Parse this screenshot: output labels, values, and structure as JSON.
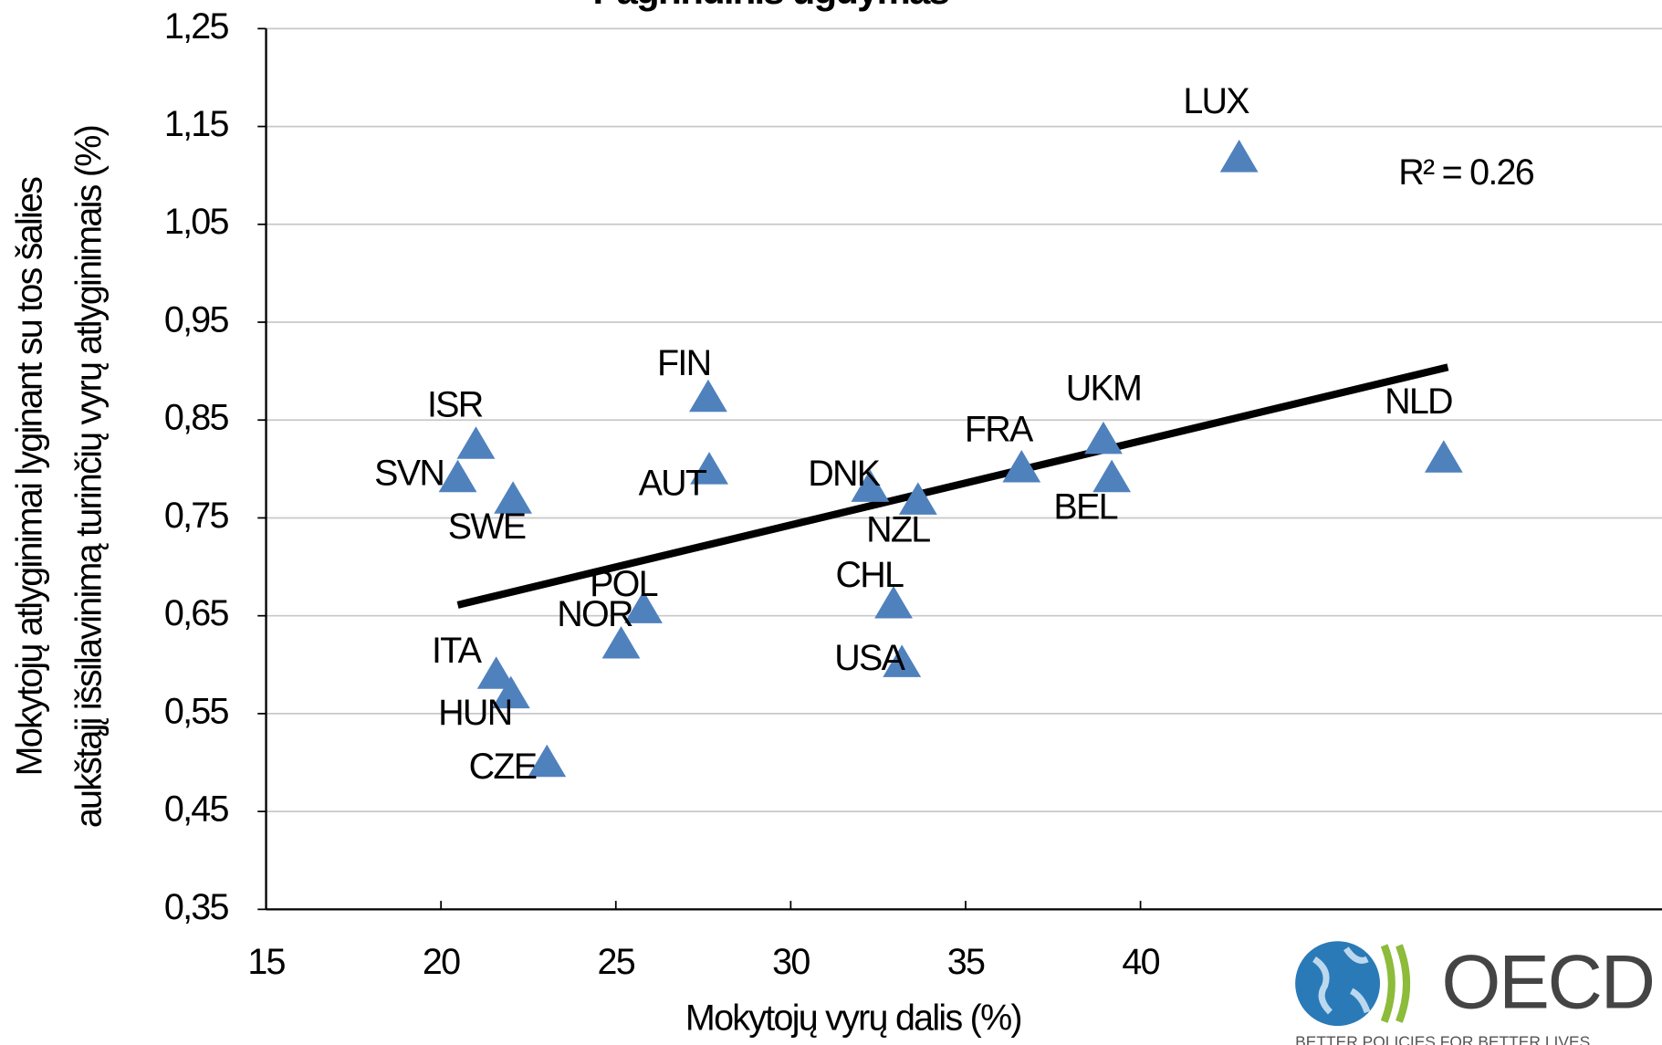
{
  "chart_data": {
    "type": "scatter",
    "title": "Pagrindinis ugdymas",
    "xlabel": "Mokytojų vyrų dalis (%)",
    "ylabel": [
      "Mokytojų atlyginimai lyginant su tos šalies",
      "aukštąjį išsilavinimą turinčių vyrų atlyginimais (%)"
    ],
    "annotation": "R² = 0.26",
    "labels": [
      "ISR",
      "SVN",
      "SWE",
      "FIN",
      "AUT",
      "DNK",
      "NZL",
      "FRA",
      "UKM",
      "BEL",
      "NLD",
      "LUX",
      "POL",
      "NOR",
      "CHL",
      "USA",
      "ITA",
      "HUN",
      "CZE"
    ],
    "x": [
      21.0,
      20.48,
      22.06,
      27.64,
      27.67,
      32.27,
      33.64,
      36.6,
      38.94,
      39.18,
      48.67,
      42.82,
      25.79,
      25.15,
      32.94,
      33.18,
      21.58,
      22.0,
      23.03
    ],
    "values": [
      0.824,
      0.79,
      0.768,
      0.872,
      0.798,
      0.78,
      0.767,
      0.8,
      0.829,
      0.79,
      0.81,
      1.117,
      0.656,
      0.62,
      0.661,
      0.601,
      0.589,
      0.569,
      0.499
    ],
    "color": "#4f81bd",
    "trendline": {
      "x": [
        20.48,
        48.79
      ],
      "values": [
        0.661,
        0.904
      ],
      "color": "#000000"
    },
    "xlim": [
      15,
      55
    ],
    "ylim": [
      0.35,
      1.25
    ],
    "xticks": [
      15,
      20,
      25,
      30,
      35,
      40
    ],
    "yticks": [
      {
        "value": 0.35,
        "label": "0,35"
      },
      {
        "value": 0.45,
        "label": "0,45"
      },
      {
        "value": 0.55,
        "label": "0,55"
      },
      {
        "value": 0.65,
        "label": "0,65"
      },
      {
        "value": 0.75,
        "label": "0,75"
      },
      {
        "value": 0.85,
        "label": "0,85"
      },
      {
        "value": 0.95,
        "label": "0,95"
      },
      {
        "value": 1.05,
        "label": "1,05"
      },
      {
        "value": 1.15,
        "label": "1,15"
      },
      {
        "value": 1.25,
        "label": "1,25"
      }
    ],
    "grid": true
  },
  "logo": {
    "name": "OECD",
    "tagline": "BETTER POLICIES FOR BETTER LIVES"
  }
}
